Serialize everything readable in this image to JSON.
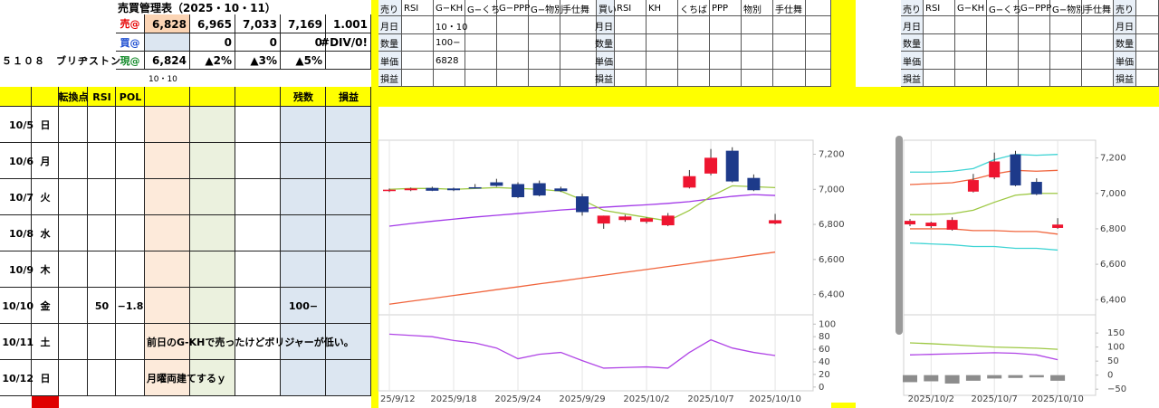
{
  "header": {
    "title": "売買管理表（2025・10・11）",
    "stock": "５１０８　ブリヂストン",
    "date": "10・10",
    "rows": [
      {
        "label": "売@",
        "values": [
          "6,828",
          "6,965",
          "7,033",
          "7,169",
          "1.001"
        ]
      },
      {
        "label": "買@",
        "values": [
          "0",
          "0",
          "0",
          "#DIV/0!"
        ]
      },
      {
        "label": "現@",
        "values": [
          "6,824",
          "▲2%",
          "▲3%",
          "▲5%"
        ]
      }
    ]
  },
  "daily_table": {
    "columns": [
      "転換点",
      "RSI",
      "POL",
      "残数",
      "損益"
    ],
    "days": [
      {
        "date": "10/5",
        "weekday": "日"
      },
      {
        "date": "10/6",
        "weekday": "月"
      },
      {
        "date": "10/7",
        "weekday": "火"
      },
      {
        "date": "10/8",
        "weekday": "水"
      },
      {
        "date": "10/9",
        "weekday": "木"
      },
      {
        "date": "10/10",
        "weekday": "金",
        "rsi": "50",
        "pol": "−1.8",
        "remaining": "100−"
      },
      {
        "date": "10/11",
        "weekday": "土",
        "note": "前日のG-KHで売ったけどボリジャーが低い。"
      },
      {
        "date": "10/12",
        "weekday": "日",
        "note": "月曜両建てするｙ"
      }
    ]
  },
  "trade_table": {
    "headers": [
      "売り",
      "RSI",
      "G−KH",
      "G−くち",
      "G−PPP",
      "G−物別",
      "手仕舞",
      "買い",
      "RSI",
      "KH",
      "くちば",
      "PPP",
      "物別",
      "手仕舞"
    ],
    "row_labels": [
      "月日",
      "数量",
      "単価",
      "損益"
    ],
    "values": [
      "10・10",
      "100−",
      "6828"
    ]
  },
  "trade_table_2": {
    "headers": [
      "売り",
      "RSI",
      "G−KH",
      "G−くち",
      "G−PPP",
      "G−物別",
      "手仕舞",
      "売り"
    ],
    "row_labels": [
      "月日",
      "数量",
      "単価",
      "損益"
    ]
  },
  "charts": [
    {
      "type": "candlestick",
      "categories": [
        "25/9/12",
        null,
        null,
        "2025/9/18",
        null,
        null,
        "2025/9/24",
        null,
        null,
        "2025/9/29",
        null,
        null,
        "2025/10/2",
        null,
        null,
        "2025/10/7",
        null,
        null,
        "2025/10/10"
      ],
      "open": [
        6990,
        6995,
        7008,
        7005,
        7012,
        7040,
        7030,
        7035,
        7005,
        6960,
        6805,
        6825,
        6815,
        6795,
        7010,
        7090,
        7220,
        7065,
        6805
      ],
      "high": [
        7005,
        7010,
        7015,
        7010,
        7030,
        7060,
        7040,
        7050,
        7015,
        6975,
        6850,
        6855,
        6840,
        6865,
        7110,
        7230,
        7240,
        7085,
        6860
      ],
      "low": [
        6985,
        6990,
        6990,
        6990,
        7005,
        7015,
        6950,
        6960,
        6985,
        6850,
        6775,
        6815,
        6805,
        6790,
        7005,
        7080,
        7040,
        6990,
        6800
      ],
      "close": [
        6998,
        7005,
        6992,
        6995,
        7008,
        7020,
        6955,
        6965,
        6990,
        6870,
        6850,
        6845,
        6835,
        6850,
        7075,
        7180,
        7045,
        6995,
        6824
      ],
      "up_color": "#ee1530",
      "down_color": "#1d3a8a",
      "lines": [
        {
          "color": "#a238e8",
          "values": [
            6790,
            6805,
            6818,
            6830,
            6842,
            6852,
            6862,
            6872,
            6882,
            6890,
            6898,
            6905,
            6912,
            6920,
            6930,
            6945,
            6960,
            6970,
            6965
          ]
        },
        {
          "color": "#9dc843",
          "values": [
            7000,
            7005,
            7005,
            7000,
            7005,
            7010,
            7005,
            7000,
            6990,
            6940,
            6880,
            6860,
            6840,
            6820,
            6880,
            6960,
            7020,
            7015,
            7010
          ]
        },
        {
          "color": "#f0643c",
          "values": [
            6345,
            6362,
            6378,
            6395,
            6411,
            6428,
            6444,
            6461,
            6477,
            6494,
            6510,
            6527,
            6543,
            6560,
            6576,
            6593,
            6609,
            6626,
            6642
          ]
        }
      ],
      "ylim": [
        6300,
        7280
      ],
      "yticks": [
        {
          "value": 6400,
          "label": "6,400"
        },
        {
          "value": 6600,
          "label": "6,600"
        },
        {
          "value": 6800,
          "label": "6,800"
        },
        {
          "value": 7000,
          "label": "7,000"
        },
        {
          "value": 7200,
          "label": "7,200"
        }
      ],
      "sub_lines": [
        {
          "color": "#b045e6",
          "values": [
            84,
            82,
            80,
            74,
            70,
            62,
            45,
            52,
            55,
            42,
            30,
            31,
            32,
            30,
            55,
            75,
            62,
            55,
            50
          ]
        }
      ],
      "y2lim": [
        -6,
        109
      ],
      "y2ticks": [
        0,
        20,
        40,
        60,
        80,
        100
      ]
    },
    {
      "type": "candlestick",
      "categories": [
        null,
        "2025/10/2",
        null,
        null,
        "2025/10/7",
        null,
        null,
        "2025/10/10"
      ],
      "open": [
        6825,
        6815,
        6795,
        7010,
        7090,
        7220,
        7065,
        6805
      ],
      "high": [
        6855,
        6840,
        6865,
        7110,
        7230,
        7240,
        7085,
        6860
      ],
      "low": [
        6815,
        6805,
        6790,
        7005,
        7080,
        7040,
        6990,
        6800
      ],
      "close": [
        6845,
        6835,
        6850,
        7075,
        7180,
        7045,
        6995,
        6824
      ],
      "up_color": "#ee1530",
      "down_color": "#1d3a8a",
      "lines": [
        {
          "color": "#3fd4d4",
          "values": [
            7120,
            7120,
            7125,
            7140,
            7190,
            7220,
            7215,
            7220
          ]
        },
        {
          "color": "#f0643c",
          "values": [
            7050,
            7055,
            7060,
            7080,
            7110,
            7130,
            7125,
            7130
          ]
        },
        {
          "color": "#9dc843",
          "values": [
            6880,
            6880,
            6885,
            6905,
            6950,
            6990,
            7000,
            7000
          ]
        },
        {
          "color": "#f0643c",
          "values": [
            6800,
            6800,
            6800,
            6790,
            6790,
            6785,
            6785,
            6770
          ]
        },
        {
          "color": "#3fd4d4",
          "values": [
            6720,
            6715,
            6710,
            6700,
            6700,
            6690,
            6690,
            6680
          ]
        }
      ],
      "ylim": [
        6330,
        7300
      ],
      "yticks": [
        {
          "value": 6400,
          "label": "6,400"
        },
        {
          "value": 6600,
          "label": "6,600"
        },
        {
          "value": 6800,
          "label": "6,800"
        },
        {
          "value": 7000,
          "label": "7,000"
        },
        {
          "value": 7200,
          "label": "7,200"
        }
      ],
      "sub_bars": {
        "color": "#8c8c8c",
        "values": [
          -25,
          -22,
          -30,
          -20,
          -12,
          -10,
          -8,
          -20
        ]
      },
      "sub_lines": [
        {
          "color": "#9dc843",
          "values": [
            115,
            112,
            108,
            104,
            100,
            98,
            96,
            92
          ]
        },
        {
          "color": "#b045e6",
          "values": [
            72,
            74,
            76,
            78,
            80,
            78,
            72,
            55
          ]
        }
      ],
      "y2lim": [
        -72,
        202
      ],
      "y2ticks": [
        {
          "value": -50,
          "label": "−50"
        },
        0,
        50,
        100,
        150
      ]
    }
  ]
}
